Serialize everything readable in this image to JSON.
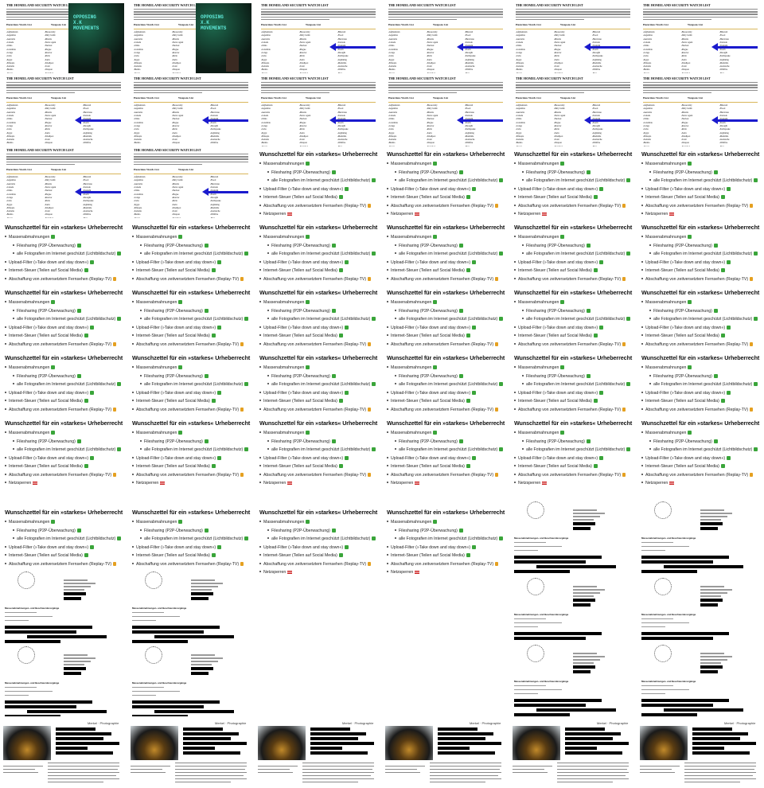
{
  "wishlist": {
    "title": "Wunschzettel für ein »starkes« Urheberrecht",
    "items": [
      {
        "label": "Massenabmahnungen",
        "marker": "check",
        "indent": 0
      },
      {
        "label": "Filesharing (P2P-Überwachung)",
        "marker": "check",
        "indent": 1
      },
      {
        "label": "alle Fotografien im Internet geschützt (Lichtbildschutz)",
        "marker": "check",
        "indent": 1
      },
      {
        "label": "Upload-Filter (»Take down and stay down«)",
        "marker": "check",
        "indent": 0
      },
      {
        "label": "Internet-Steuer (Teilen auf Social Media)",
        "marker": "check",
        "indent": 0
      },
      {
        "label": "Abschaffung von zeitversetztem Fernsehen (Replay-TV)",
        "marker": "money",
        "indent": 0
      },
      {
        "label": "Netzsperren",
        "marker": "flag",
        "indent": 0
      }
    ]
  },
  "watchlist": {
    "title": "THE HOMELAND SECURITY WATCH LIST",
    "col1_header": "Hazardous Words List",
    "col2_header": "Weapons List",
    "col3_header": "",
    "words": [
      "Afghanistan",
      "Argentina",
      "Australia",
      "Canada",
      "China",
      "Colombia",
      "Congo",
      "Cuba",
      "Egypt",
      "Ethiopia",
      "Somalia",
      "Burma",
      "Russia",
      "Yemen",
      "Syria",
      "Chechnya",
      "Uganda",
      "Zimbabwe"
    ],
    "words2": [
      "Biosecurity",
      "Dirty bomb",
      "Missile",
      "Nerve agent",
      "Nuclear",
      "Plague",
      "Reactor",
      "Ricin",
      "Sarin",
      "Smallpox",
      "Toxic",
      "Weapon",
      "Enriched",
      "Uranium",
      "Anthrax",
      "Bomb"
    ],
    "words3": [
      "Blizzard",
      "Flood",
      "Hurricane",
      "Tornado",
      "Tsunami",
      "Storm",
      "Drought",
      "Earthquake",
      "Lightning",
      "Mudslide",
      "Avalanche",
      "Wildfire",
      "Heat",
      "Ice",
      "Snow",
      "Cyclone"
    ],
    "video_text": "OPPOSING\nX.K\nMOVEMENTS",
    "colors": {
      "arrow": "#1a1acd",
      "rule": "#d9b65a",
      "video": "#0b1a14"
    }
  },
  "letter": {
    "title": "Massenabmahnungen- und Beschwerdevorgänge",
    "subtitle": "",
    "colors": {
      "redaction": "#000000"
    }
  },
  "magazine": {
    "brand": "Merkel · Photographie",
    "colors": {
      "redaction": "#000000"
    }
  }
}
